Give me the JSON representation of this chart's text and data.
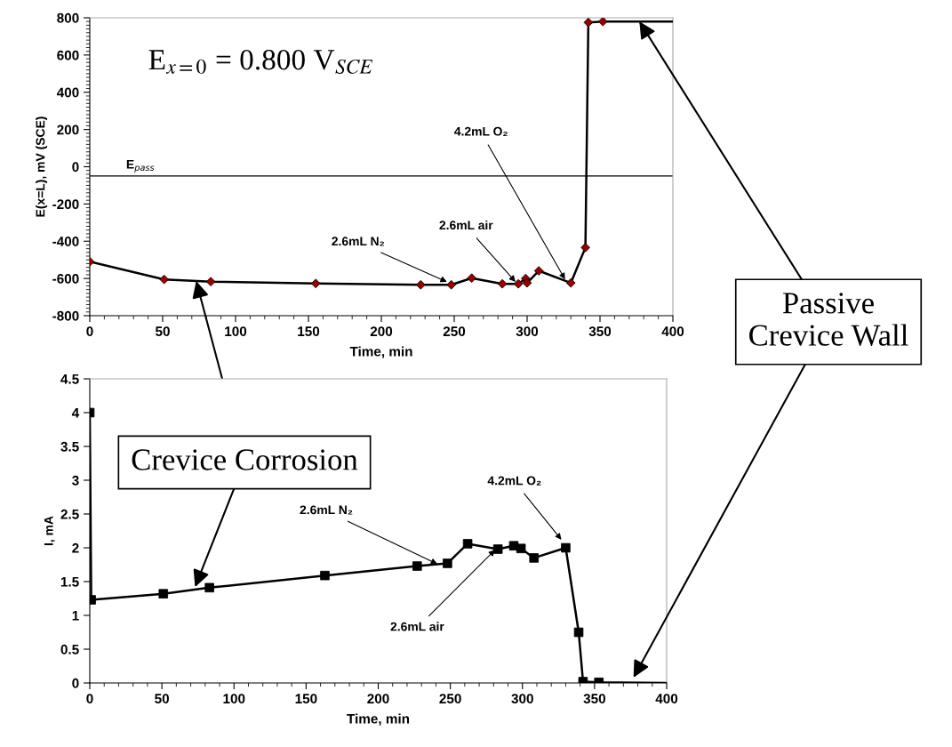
{
  "chart_data": [
    {
      "type": "line",
      "xlabel": "Time, min",
      "ylabel": "E(x=L), mV (SCE)",
      "marker": "diamond",
      "legend": false,
      "grid": false,
      "xlim": [
        0,
        400
      ],
      "xticks": [
        0,
        50,
        100,
        150,
        200,
        250,
        300,
        350,
        400
      ],
      "ylim": [
        -800,
        800
      ],
      "yticks": [
        -800,
        -600,
        -400,
        -200,
        0,
        200,
        400,
        600,
        800
      ],
      "ref_lines": [
        {
          "axis": "y",
          "value": -50,
          "label": "E$_{pass}$",
          "color": "#000000",
          "line_style": "solid"
        }
      ],
      "series": [
        {
          "color": "#000000",
          "x": [
            0,
            51,
            83,
            155,
            227,
            248,
            262,
            283,
            294,
            299,
            300,
            308,
            330,
            340,
            342,
            352,
            400
          ],
          "values": [
            -510,
            -605,
            -617,
            -627,
            -634,
            -634,
            -598,
            -629,
            -629,
            -600,
            -624,
            -559,
            -624,
            -434,
            775,
            780,
            780
          ],
          "colors": [
            "#990000",
            "#990000",
            "#990000",
            "#990000",
            "#990000",
            "#990000",
            "#990000",
            "#990000",
            "#990000",
            "#990000",
            "#990000",
            "#990000",
            "#990000",
            "#990000",
            "#990000",
            "#990000",
            null
          ]
        }
      ],
      "annotations": [
        "E$_{x=0}$ = 0.800 V$_{SCE}$",
        {
          "text": "2.6mL N₂",
          "x": 245,
          "y": -618
        },
        {
          "text": "2.6mL air",
          "x": 292,
          "y": -618
        },
        {
          "text": "4.2mL O₂",
          "x": 326,
          "y": -605
        }
      ]
    },
    {
      "type": "line",
      "xlabel": "Time, min",
      "ylabel": "I, mA",
      "marker": "square",
      "legend": false,
      "grid": false,
      "xlim": [
        0,
        400
      ],
      "xticks": [
        0,
        50,
        100,
        150,
        200,
        250,
        300,
        350,
        400
      ],
      "ylim": [
        0,
        4.5
      ],
      "yticks": [
        0,
        0.5,
        1,
        1.5,
        2,
        2.5,
        3,
        3.5,
        4,
        4.5
      ],
      "series": [
        {
          "color": "#000000",
          "x": [
            0,
            1,
            51,
            83,
            163,
            227,
            248,
            262,
            283,
            294,
            299,
            308,
            330,
            339,
            342,
            353,
            400
          ],
          "values": [
            4,
            1.23,
            1.32,
            1.41,
            1.59,
            1.73,
            1.77,
            2.06,
            1.98,
            2.03,
            1.99,
            1.85,
            2.0,
            0.75,
            0.02,
            0.01,
            0
          ],
          "colors": [
            "#000000",
            "#000000",
            "#000000",
            "#000000",
            "#000000",
            "#000000",
            "#000000",
            "#000000",
            "#000000",
            "#000000",
            "#000000",
            "#000000",
            "#000000",
            "#000000",
            "#000000",
            "#000000",
            null
          ]
        }
      ],
      "annotations": [
        {
          "text": "2.6mL N₂",
          "x": 241,
          "y": 1.76
        },
        {
          "text": "2.6mL air",
          "x": 281,
          "y": 1.97
        },
        {
          "text": "4.2mL O₂",
          "x": 327,
          "y": 2.12
        },
        {
          "text": "Crevice Corrosion",
          "x": 73,
          "y": 1.42
        },
        {
          "text": "Passive\nCrevice Wall",
          "x": 377,
          "y": 0.08
        }
      ]
    }
  ]
}
